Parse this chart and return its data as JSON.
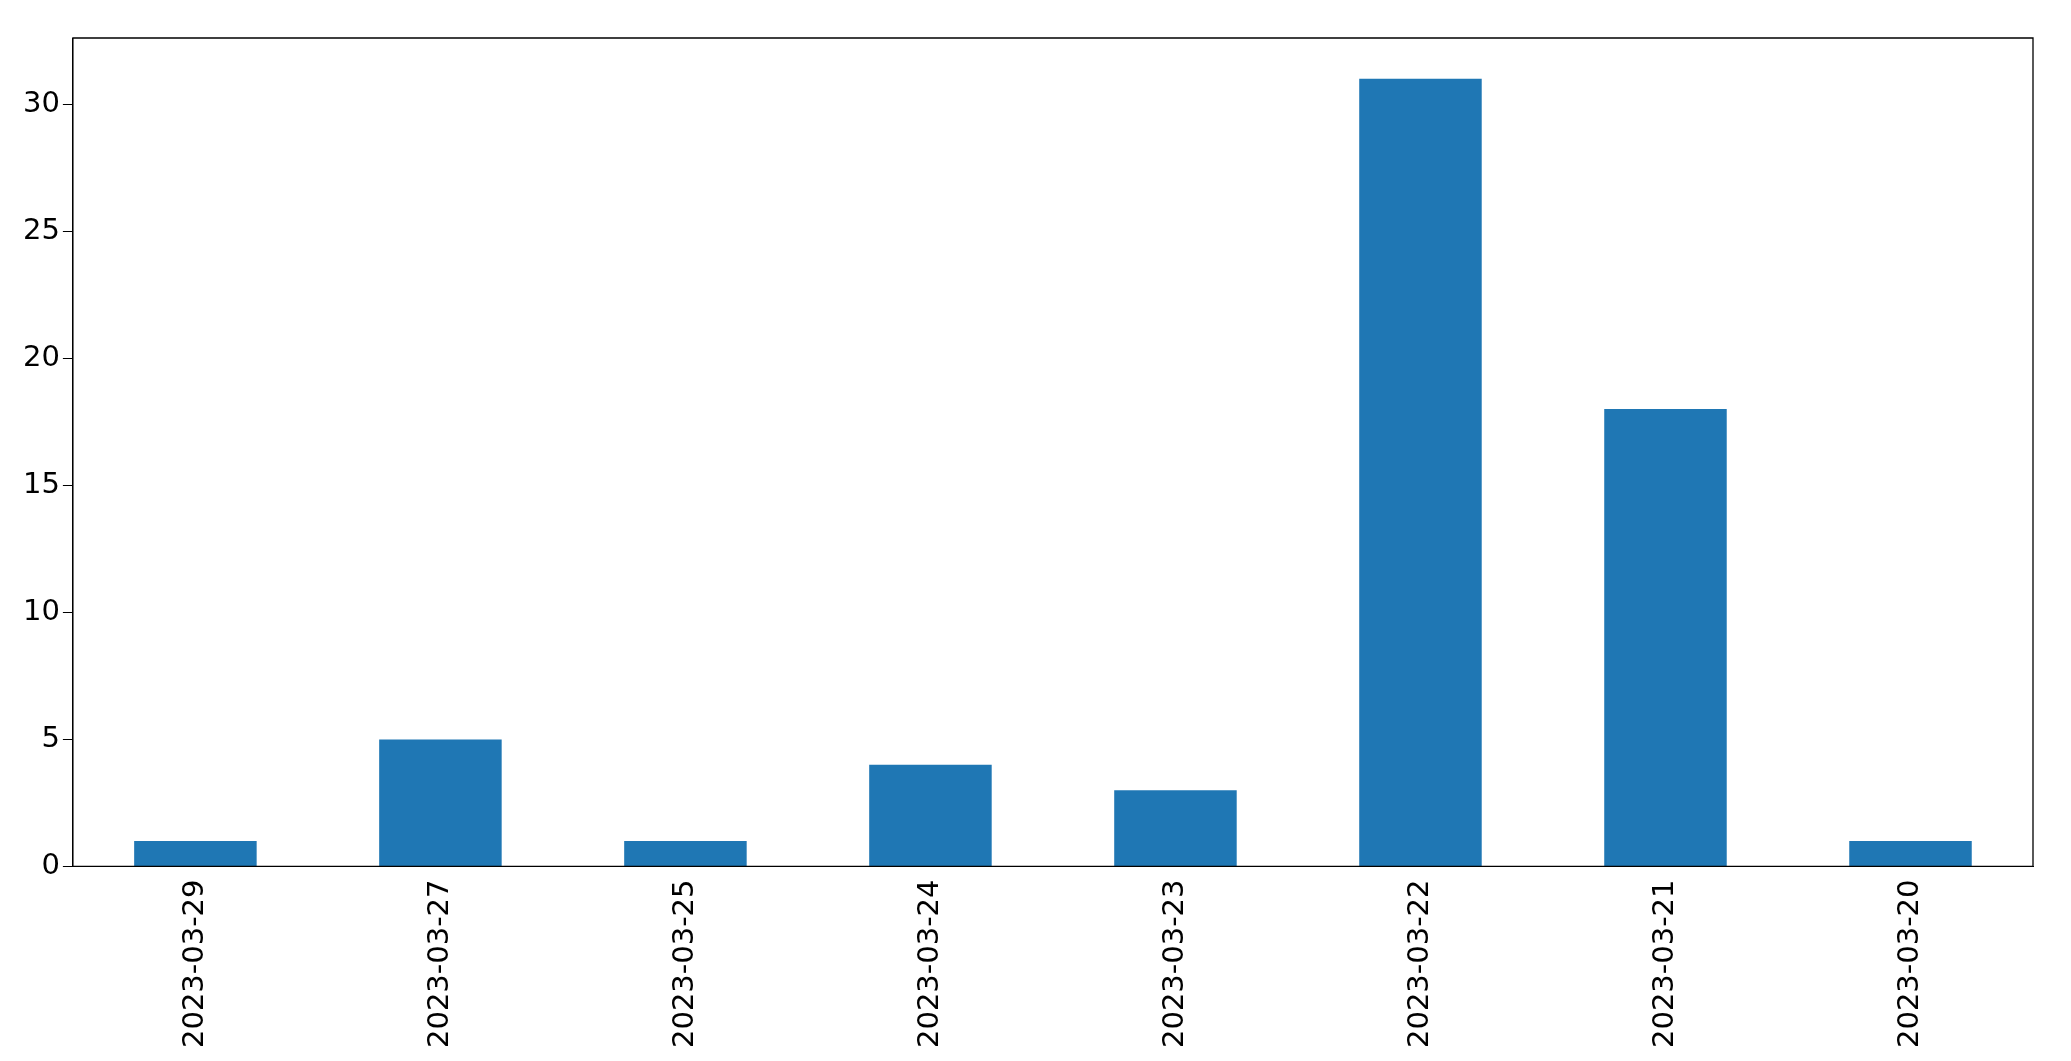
{
  "chart_data": {
    "type": "bar",
    "categories": [
      "2023-03-29",
      "2023-03-27",
      "2023-03-25",
      "2023-03-24",
      "2023-03-23",
      "2023-03-22",
      "2023-03-21",
      "2023-03-20"
    ],
    "values": [
      1,
      5,
      1,
      4,
      3,
      31,
      18,
      1
    ],
    "color": "#1f77b4",
    "ylim": [
      0,
      32.6
    ],
    "yticks": [
      0,
      5,
      10,
      15,
      20,
      25,
      30
    ]
  }
}
